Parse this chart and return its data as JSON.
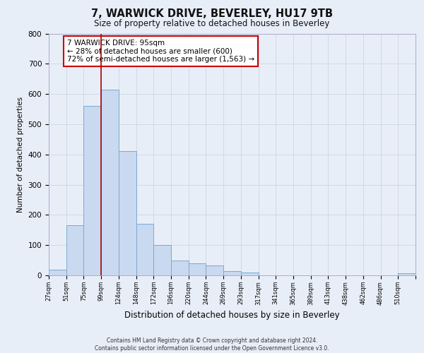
{
  "title": "7, WARWICK DRIVE, BEVERLEY, HU17 9TB",
  "subtitle": "Size of property relative to detached houses in Beverley",
  "xlabel": "Distribution of detached houses by size in Beverley",
  "ylabel": "Number of detached properties",
  "bin_labels": [
    "27sqm",
    "51sqm",
    "75sqm",
    "99sqm",
    "124sqm",
    "148sqm",
    "172sqm",
    "196sqm",
    "220sqm",
    "244sqm",
    "269sqm",
    "293sqm",
    "317sqm",
    "341sqm",
    "365sqm",
    "389sqm",
    "413sqm",
    "438sqm",
    "462sqm",
    "486sqm",
    "510sqm"
  ],
  "bar_values": [
    18,
    165,
    560,
    615,
    410,
    170,
    100,
    50,
    40,
    33,
    13,
    10,
    0,
    0,
    0,
    0,
    0,
    0,
    0,
    0,
    8
  ],
  "bar_color": "#c9d9f0",
  "bar_edge_color": "#7aaad0",
  "vline_x": 3,
  "vline_color": "#aa0000",
  "annotation_title": "7 WARWICK DRIVE: 95sqm",
  "annotation_line1": "← 28% of detached houses are smaller (600)",
  "annotation_line2": "72% of semi-detached houses are larger (1,563) →",
  "annotation_box_color": "#ffffff",
  "annotation_box_edge_color": "#cc0000",
  "ylim": [
    0,
    800
  ],
  "yticks": [
    0,
    100,
    200,
    300,
    400,
    500,
    600,
    700,
    800
  ],
  "footer1": "Contains HM Land Registry data © Crown copyright and database right 2024.",
  "footer2": "Contains public sector information licensed under the Open Government Licence v3.0.",
  "bg_color": "#e8eef8"
}
